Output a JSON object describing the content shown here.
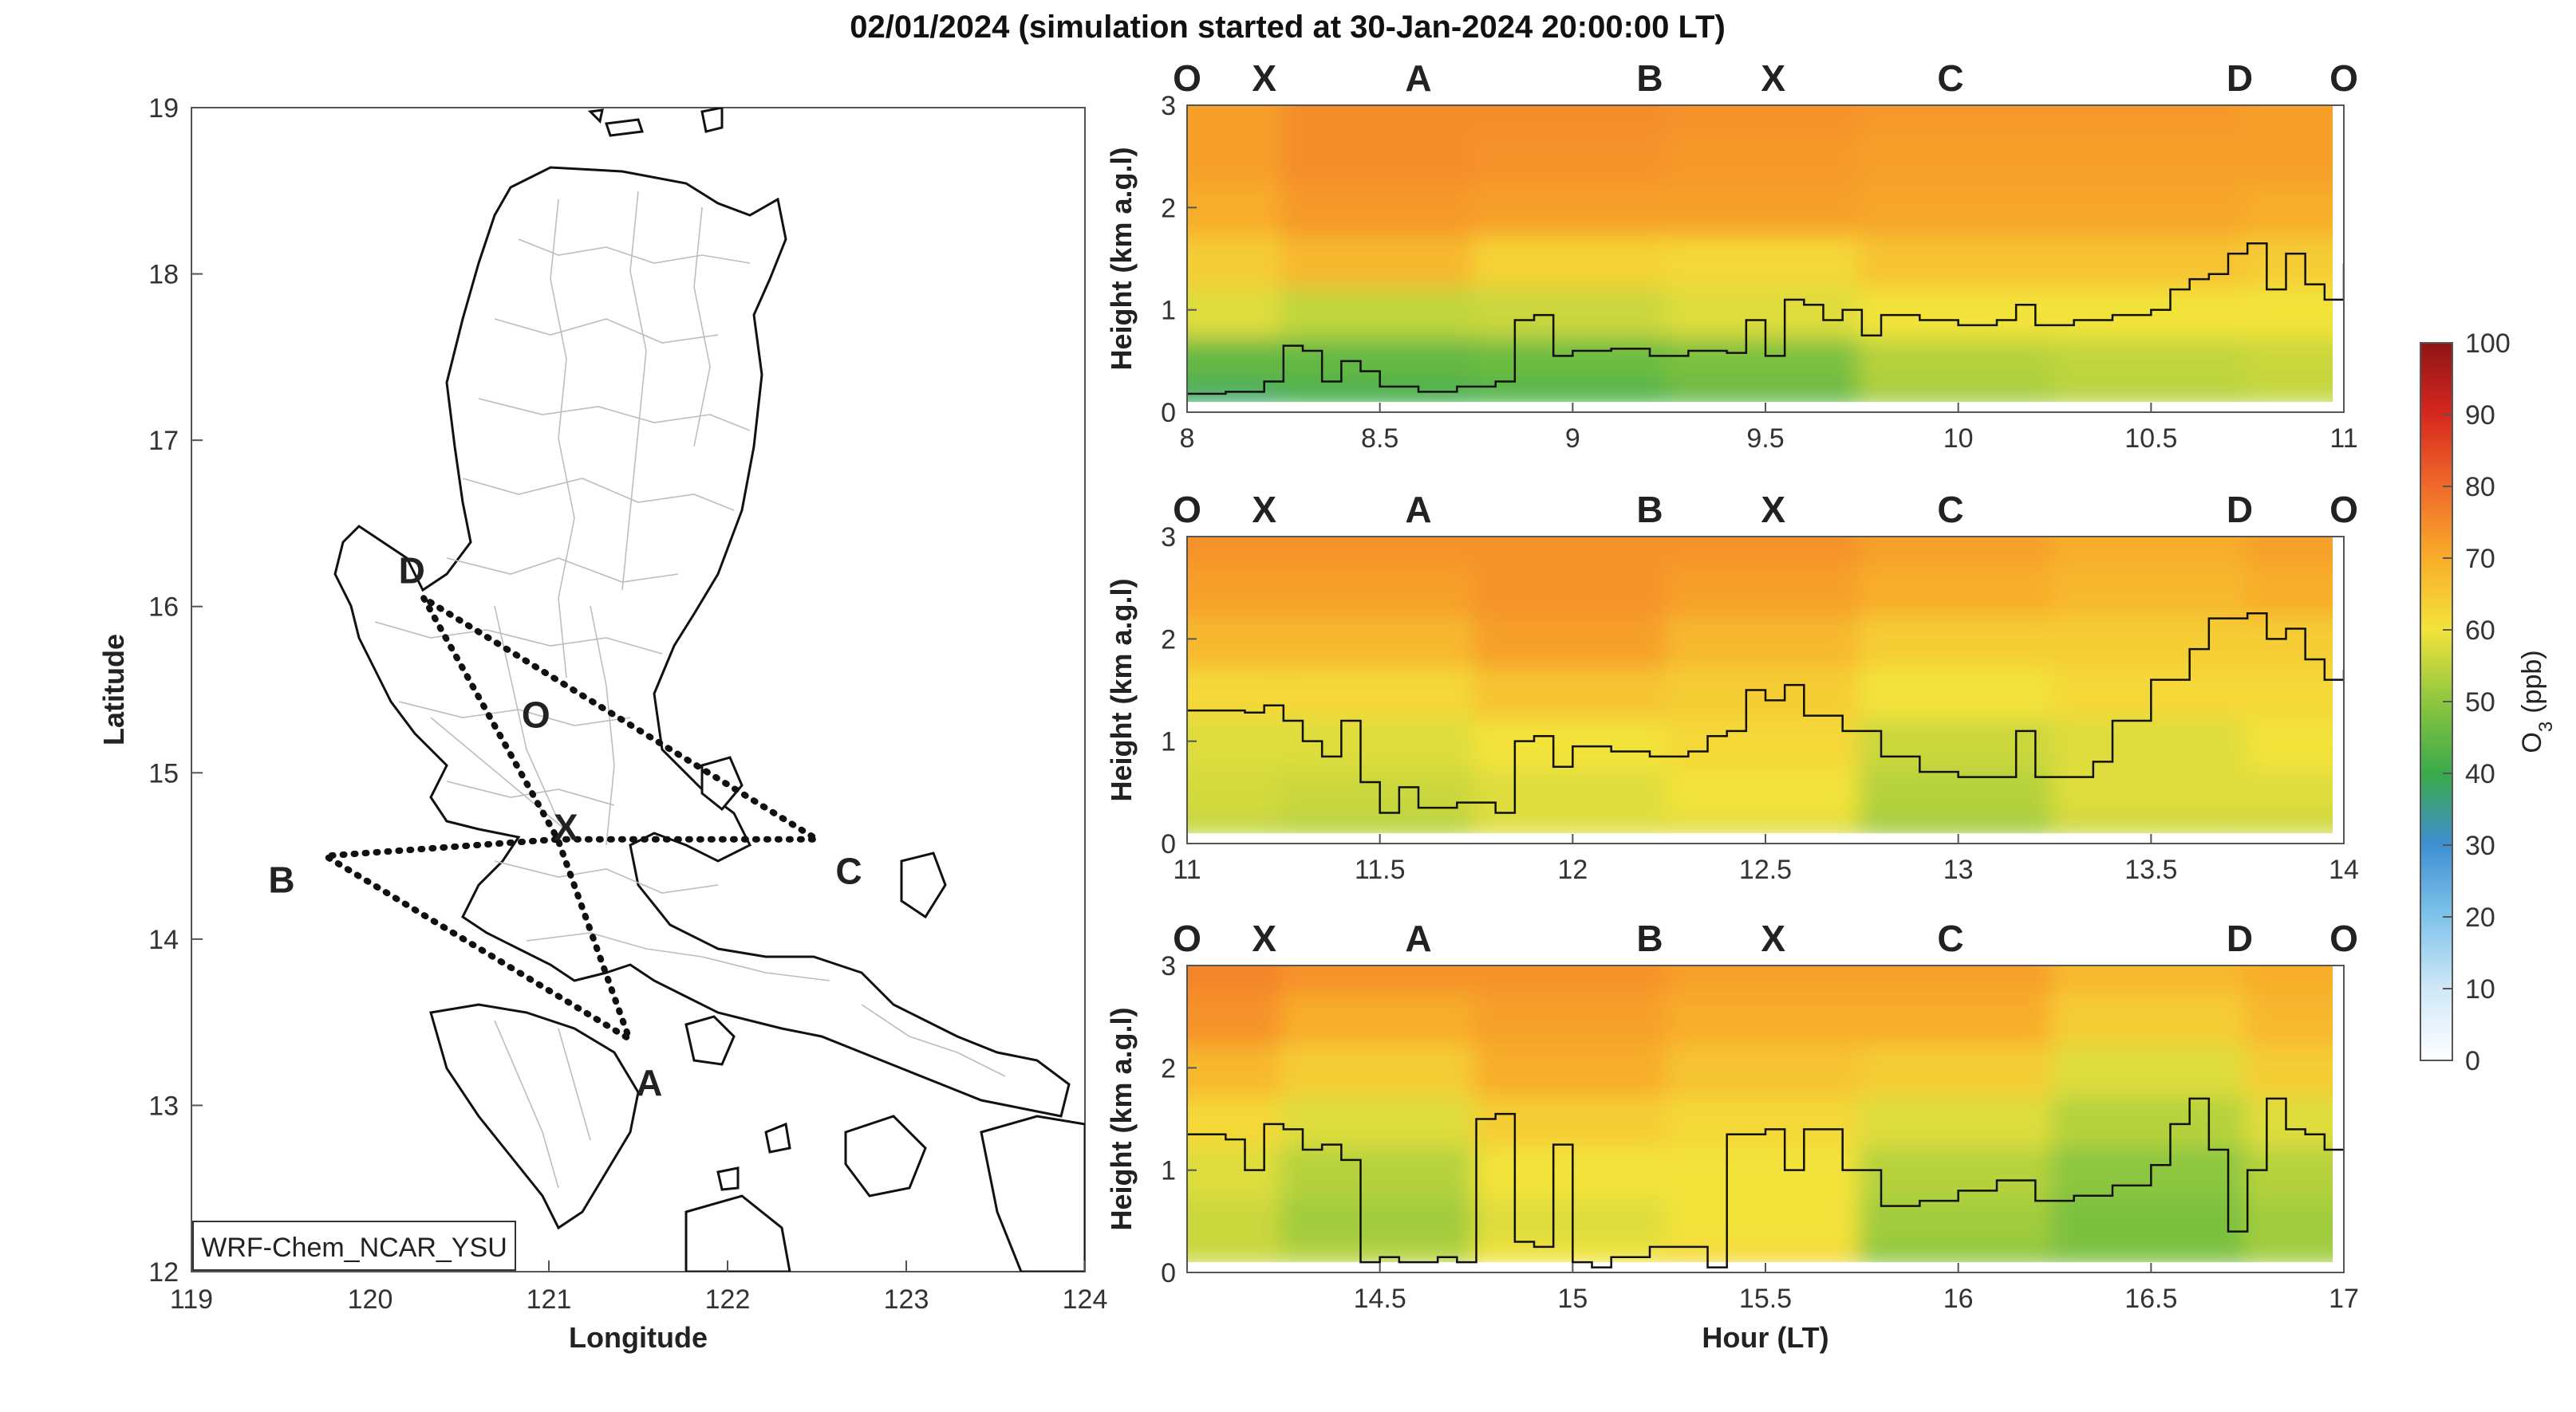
{
  "title": "02/01/2024 (simulation started at 30-Jan-2024 20:00:00 LT)",
  "colors": {
    "O": "#111111",
    "X": "#a3172a",
    "A": "#f0a61c",
    "B": "#70b13a",
    "C": "#44b9e6",
    "D": "#8a3294"
  },
  "chart_data": [
    {
      "type": "map",
      "xlabel": "Longitude",
      "ylabel": "Latitude",
      "xlim": [
        119,
        124
      ],
      "ylim": [
        12,
        19
      ],
      "xticks": [
        "119",
        "120",
        "121",
        "122",
        "123",
        "124"
      ],
      "yticks": [
        "12",
        "13",
        "14",
        "15",
        "16",
        "17",
        "18",
        "19"
      ],
      "model_label": "WRF-Chem_NCAR_YSU",
      "waypoints": [
        {
          "name": "O",
          "lon": 120.95,
          "lat": 15.3
        },
        {
          "name": "X",
          "lon": 121.05,
          "lat": 14.6
        },
        {
          "name": "A",
          "lon": 121.45,
          "lat": 13.4
        },
        {
          "name": "B",
          "lon": 119.75,
          "lat": 14.5
        },
        {
          "name": "C",
          "lon": 122.5,
          "lat": 14.6
        },
        {
          "name": "D",
          "lon": 120.3,
          "lat": 16.05
        }
      ],
      "flight_path": [
        "D",
        "X",
        "A",
        "B",
        "X",
        "C",
        "D"
      ]
    },
    {
      "type": "heatmap",
      "xlim": [
        8,
        11
      ],
      "ylim": [
        0,
        3
      ],
      "xticks": [
        "8",
        "8.5",
        "9",
        "9.5",
        "10",
        "10.5",
        "11"
      ],
      "yticks": [
        "0",
        "1",
        "2",
        "3"
      ],
      "ylabel": "Height (km a.g.l)",
      "xlabel": "",
      "waypoint_labels": [
        {
          "name": "O",
          "t": 8.0
        },
        {
          "name": "X",
          "t": 8.2
        },
        {
          "name": "A",
          "t": 8.6
        },
        {
          "name": "B",
          "t": 9.2
        },
        {
          "name": "X",
          "t": 9.52
        },
        {
          "name": "C",
          "t": 9.98
        },
        {
          "name": "D",
          "t": 10.73
        },
        {
          "name": "O",
          "t": 11.0
        }
      ],
      "pbl_height_km": [
        [
          8.0,
          0.18
        ],
        [
          8.1,
          0.2
        ],
        [
          8.2,
          0.3
        ],
        [
          8.25,
          0.65
        ],
        [
          8.3,
          0.6
        ],
        [
          8.35,
          0.3
        ],
        [
          8.4,
          0.5
        ],
        [
          8.45,
          0.4
        ],
        [
          8.5,
          0.25
        ],
        [
          8.6,
          0.2
        ],
        [
          8.7,
          0.25
        ],
        [
          8.8,
          0.3
        ],
        [
          8.85,
          0.9
        ],
        [
          8.9,
          0.95
        ],
        [
          8.95,
          0.55
        ],
        [
          9.0,
          0.6
        ],
        [
          9.1,
          0.62
        ],
        [
          9.2,
          0.55
        ],
        [
          9.3,
          0.6
        ],
        [
          9.4,
          0.58
        ],
        [
          9.45,
          0.9
        ],
        [
          9.5,
          0.55
        ],
        [
          9.55,
          1.1
        ],
        [
          9.6,
          1.05
        ],
        [
          9.65,
          0.9
        ],
        [
          9.7,
          1.0
        ],
        [
          9.75,
          0.75
        ],
        [
          9.8,
          0.95
        ],
        [
          9.9,
          0.9
        ],
        [
          10.0,
          0.85
        ],
        [
          10.1,
          0.9
        ],
        [
          10.15,
          1.05
        ],
        [
          10.2,
          0.85
        ],
        [
          10.3,
          0.9
        ],
        [
          10.4,
          0.95
        ],
        [
          10.5,
          1.0
        ],
        [
          10.55,
          1.2
        ],
        [
          10.6,
          1.3
        ],
        [
          10.65,
          1.35
        ],
        [
          10.7,
          1.55
        ],
        [
          10.75,
          1.65
        ],
        [
          10.8,
          1.2
        ],
        [
          10.85,
          1.55
        ],
        [
          10.9,
          1.25
        ],
        [
          10.95,
          1.1
        ],
        [
          11.0,
          1.45
        ]
      ],
      "o3_profile_ppb": {
        "heights_km": [
          0.1,
          0.5,
          1.0,
          1.5,
          2.0,
          2.5,
          3.0
        ],
        "times_h": [
          8.0,
          8.5,
          9.0,
          9.5,
          10.0,
          10.5,
          11.0
        ],
        "values": [
          [
            38,
            40,
            42,
            45,
            52,
            54,
            55
          ],
          [
            45,
            45,
            46,
            48,
            54,
            55,
            56
          ],
          [
            58,
            55,
            56,
            58,
            60,
            60,
            60
          ],
          [
            64,
            68,
            63,
            62,
            66,
            66,
            64
          ],
          [
            70,
            73,
            72,
            72,
            71,
            71,
            70
          ],
          [
            72,
            75,
            74,
            73,
            72,
            72,
            72
          ],
          [
            72,
            75,
            75,
            74,
            73,
            73,
            72
          ]
        ]
      }
    },
    {
      "type": "heatmap",
      "xlim": [
        11,
        14
      ],
      "ylim": [
        0,
        3
      ],
      "xticks": [
        "11",
        "11.5",
        "12",
        "12.5",
        "13",
        "13.5",
        "14"
      ],
      "yticks": [
        "0",
        "1",
        "2",
        "3"
      ],
      "ylabel": "Height (km a.g.l)",
      "xlabel": "",
      "waypoint_labels": [
        {
          "name": "O",
          "t": 11.0
        },
        {
          "name": "X",
          "t": 11.2
        },
        {
          "name": "A",
          "t": 11.6
        },
        {
          "name": "B",
          "t": 12.2
        },
        {
          "name": "X",
          "t": 12.52
        },
        {
          "name": "C",
          "t": 12.98
        },
        {
          "name": "D",
          "t": 13.73
        },
        {
          "name": "O",
          "t": 14.0
        }
      ],
      "pbl_height_km": [
        [
          11.0,
          1.3
        ],
        [
          11.15,
          1.28
        ],
        [
          11.2,
          1.35
        ],
        [
          11.25,
          1.2
        ],
        [
          11.3,
          1.0
        ],
        [
          11.35,
          0.85
        ],
        [
          11.4,
          1.2
        ],
        [
          11.45,
          0.6
        ],
        [
          11.5,
          0.3
        ],
        [
          11.55,
          0.55
        ],
        [
          11.6,
          0.35
        ],
        [
          11.7,
          0.4
        ],
        [
          11.8,
          0.3
        ],
        [
          11.85,
          1.0
        ],
        [
          11.9,
          1.05
        ],
        [
          11.95,
          0.75
        ],
        [
          12.0,
          0.95
        ],
        [
          12.1,
          0.9
        ],
        [
          12.2,
          0.85
        ],
        [
          12.3,
          0.9
        ],
        [
          12.35,
          1.05
        ],
        [
          12.4,
          1.1
        ],
        [
          12.45,
          1.5
        ],
        [
          12.5,
          1.4
        ],
        [
          12.55,
          1.55
        ],
        [
          12.6,
          1.25
        ],
        [
          12.7,
          1.1
        ],
        [
          12.8,
          0.85
        ],
        [
          12.9,
          0.7
        ],
        [
          13.0,
          0.65
        ],
        [
          13.1,
          0.65
        ],
        [
          13.15,
          1.1
        ],
        [
          13.2,
          0.65
        ],
        [
          13.3,
          0.65
        ],
        [
          13.35,
          0.8
        ],
        [
          13.4,
          1.2
        ],
        [
          13.5,
          1.6
        ],
        [
          13.6,
          1.9
        ],
        [
          13.65,
          2.2
        ],
        [
          13.75,
          2.25
        ],
        [
          13.8,
          2.0
        ],
        [
          13.85,
          2.1
        ],
        [
          13.9,
          1.8
        ],
        [
          13.95,
          1.6
        ],
        [
          14.0,
          1.7
        ]
      ],
      "o3_profile_ppb": {
        "heights_km": [
          0.1,
          0.5,
          1.0,
          1.5,
          2.0,
          2.5,
          3.0
        ],
        "times_h": [
          11.0,
          11.5,
          12.0,
          12.5,
          13.0,
          13.5,
          14.0
        ],
        "values": [
          [
            55,
            54,
            58,
            58,
            52,
            56,
            56
          ],
          [
            57,
            56,
            58,
            60,
            54,
            58,
            58
          ],
          [
            58,
            58,
            60,
            62,
            56,
            58,
            60
          ],
          [
            62,
            62,
            66,
            64,
            60,
            62,
            62
          ],
          [
            68,
            68,
            72,
            68,
            64,
            64,
            64
          ],
          [
            72,
            72,
            74,
            72,
            70,
            68,
            70
          ],
          [
            74,
            74,
            74,
            74,
            72,
            70,
            72
          ]
        ]
      }
    },
    {
      "type": "heatmap",
      "xlim": [
        14,
        17
      ],
      "ylim": [
        0,
        3
      ],
      "xticks": [
        "14.5",
        "15",
        "15.5",
        "16",
        "16.5",
        "17"
      ],
      "yticks": [
        "0",
        "1",
        "2",
        "3"
      ],
      "ylabel": "Height (km a.g.l)",
      "xlabel": "Hour (LT)",
      "waypoint_labels": [
        {
          "name": "O",
          "t": 14.0
        },
        {
          "name": "X",
          "t": 14.2
        },
        {
          "name": "A",
          "t": 14.6
        },
        {
          "name": "B",
          "t": 15.2
        },
        {
          "name": "X",
          "t": 15.52
        },
        {
          "name": "C",
          "t": 15.98
        },
        {
          "name": "D",
          "t": 16.73
        },
        {
          "name": "O",
          "t": 17.0
        }
      ],
      "pbl_height_km": [
        [
          14.0,
          1.35
        ],
        [
          14.1,
          1.3
        ],
        [
          14.15,
          1.0
        ],
        [
          14.2,
          1.45
        ],
        [
          14.25,
          1.4
        ],
        [
          14.3,
          1.2
        ],
        [
          14.35,
          1.25
        ],
        [
          14.4,
          1.1
        ],
        [
          14.45,
          0.1
        ],
        [
          14.5,
          0.15
        ],
        [
          14.55,
          0.1
        ],
        [
          14.65,
          0.15
        ],
        [
          14.7,
          0.1
        ],
        [
          14.75,
          1.5
        ],
        [
          14.8,
          1.55
        ],
        [
          14.85,
          0.3
        ],
        [
          14.9,
          0.25
        ],
        [
          14.95,
          1.25
        ],
        [
          15.0,
          0.1
        ],
        [
          15.05,
          0.05
        ],
        [
          15.1,
          0.15
        ],
        [
          15.2,
          0.25
        ],
        [
          15.3,
          0.25
        ],
        [
          15.35,
          0.05
        ],
        [
          15.4,
          1.35
        ],
        [
          15.5,
          1.4
        ],
        [
          15.55,
          1.0
        ],
        [
          15.6,
          1.4
        ],
        [
          15.7,
          1.0
        ],
        [
          15.8,
          0.65
        ],
        [
          15.9,
          0.7
        ],
        [
          16.0,
          0.8
        ],
        [
          16.1,
          0.9
        ],
        [
          16.2,
          0.7
        ],
        [
          16.3,
          0.75
        ],
        [
          16.4,
          0.85
        ],
        [
          16.5,
          1.05
        ],
        [
          16.55,
          1.45
        ],
        [
          16.6,
          1.7
        ],
        [
          16.65,
          1.2
        ],
        [
          16.7,
          0.4
        ],
        [
          16.75,
          1.0
        ],
        [
          16.8,
          1.7
        ],
        [
          16.85,
          1.4
        ],
        [
          16.9,
          1.35
        ],
        [
          16.95,
          1.2
        ],
        [
          17.0,
          1.2
        ]
      ],
      "o3_profile_ppb": {
        "heights_km": [
          0.1,
          0.5,
          1.0,
          1.5,
          2.0,
          2.5,
          3.0
        ],
        "times_h": [
          14.0,
          14.5,
          15.0,
          15.5,
          16.0,
          16.5,
          17.0
        ],
        "values": [
          [
            56,
            54,
            60,
            62,
            50,
            48,
            52
          ],
          [
            56,
            52,
            58,
            60,
            52,
            48,
            52
          ],
          [
            58,
            54,
            60,
            60,
            54,
            50,
            54
          ],
          [
            62,
            58,
            64,
            62,
            58,
            54,
            58
          ],
          [
            68,
            64,
            70,
            66,
            64,
            58,
            64
          ],
          [
            74,
            70,
            72,
            70,
            70,
            64,
            68
          ],
          [
            76,
            74,
            74,
            72,
            72,
            68,
            70
          ]
        ]
      }
    },
    {
      "type": "colorbar",
      "label": "O",
      "label_sub": "3",
      "label_unit": "(ppb)",
      "range": [
        0,
        100
      ],
      "ticks": [
        "0",
        "10",
        "20",
        "30",
        "40",
        "50",
        "60",
        "70",
        "80",
        "90",
        "100"
      ]
    }
  ]
}
